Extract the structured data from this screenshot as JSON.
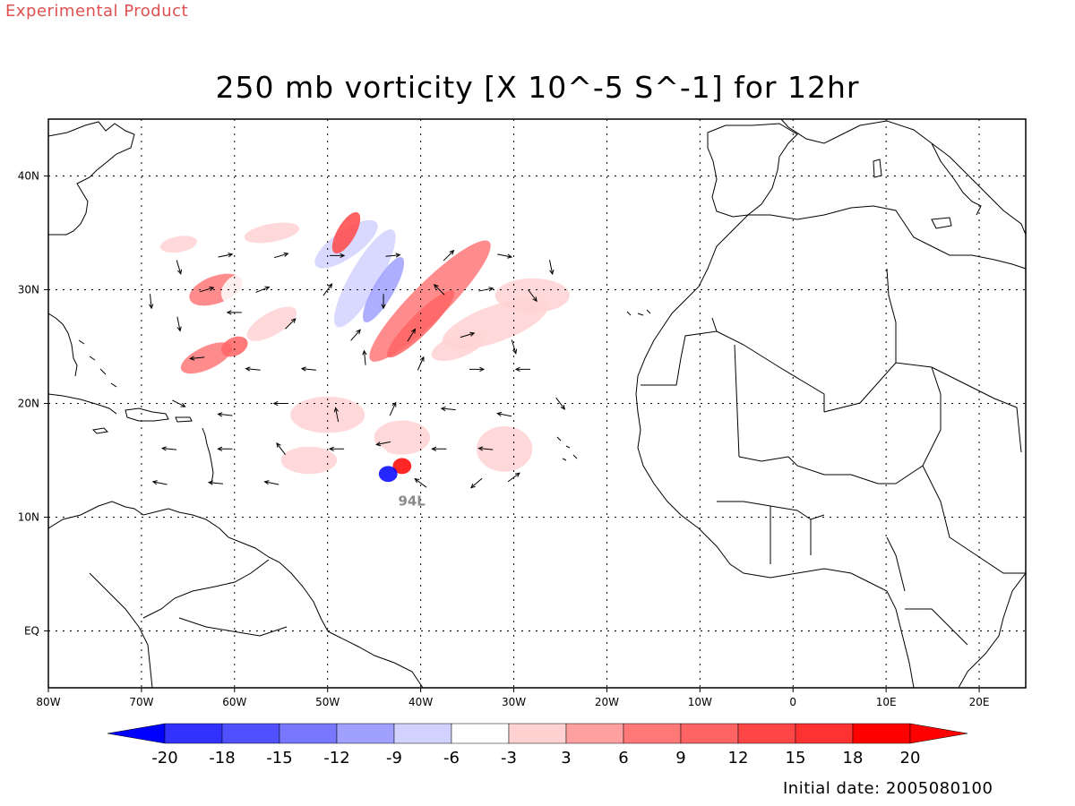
{
  "banner": "Experimental Product",
  "title": "250 mb vorticity [X 10^-5 S^-1] for 12hr",
  "initial_date": "Initial date: 2005080100",
  "storm_label": "94L",
  "map": {
    "lon_range": [
      -80,
      25
    ],
    "lat_range": [
      -5,
      45
    ],
    "x_ticks": [
      "80W",
      "70W",
      "60W",
      "50W",
      "40W",
      "30W",
      "20W",
      "10W",
      "0",
      "10E",
      "20E"
    ],
    "x_tick_values": [
      -80,
      -70,
      -60,
      -50,
      -40,
      -30,
      -20,
      -10,
      0,
      10,
      20
    ],
    "y_ticks": [
      "40N",
      "30N",
      "20N",
      "10N",
      "EQ"
    ],
    "y_tick_values": [
      40,
      30,
      20,
      10,
      0
    ],
    "gridlines": "dotted",
    "domain_box_lon": [
      -70,
      -24
    ],
    "domain_box_lat": [
      12.5,
      36.5
    ],
    "storm_center": {
      "lon": -43,
      "lat": 14
    }
  },
  "colorbar": {
    "labels": [
      "-20",
      "-18",
      "-15",
      "-12",
      "-9",
      "-6",
      "-3",
      "3",
      "6",
      "9",
      "12",
      "15",
      "18",
      "20"
    ],
    "colors": [
      "#0000ff",
      "#3232ff",
      "#5050ff",
      "#7878ff",
      "#a0a0ff",
      "#d2d2ff",
      "#ffffff",
      "#ffd2d2",
      "#ffa0a0",
      "#ff7878",
      "#ff6464",
      "#ff4646",
      "#ff3232",
      "#ff0000"
    ]
  },
  "vorticity_blobs": [
    {
      "lon": -48,
      "lat": 34,
      "rx": 4,
      "ry": 1.2,
      "rot": -35,
      "v": -9
    },
    {
      "lon": -53,
      "lat": 29,
      "rx": 5,
      "ry": 1.4,
      "rot": -35,
      "v": -6
    },
    {
      "lon": -46,
      "lat": 31,
      "rx": 6,
      "ry": 1.3,
      "rot": -60,
      "v": -9
    },
    {
      "lon": -44,
      "lat": 30,
      "rx": 4,
      "ry": 0.9,
      "rot": -60,
      "v": -12
    },
    {
      "lon": -39,
      "lat": 29,
      "rx": 9,
      "ry": 1.6,
      "rot": -45,
      "v": 6
    },
    {
      "lon": -40,
      "lat": 27,
      "rx": 5,
      "ry": 0.9,
      "rot": -45,
      "v": 9
    },
    {
      "lon": -48,
      "lat": 35,
      "rx": 2.5,
      "ry": 0.8,
      "rot": -60,
      "v": 12
    },
    {
      "lon": -32,
      "lat": 27,
      "rx": 6,
      "ry": 1.6,
      "rot": -20,
      "v": -3
    },
    {
      "lon": -28,
      "lat": 29.5,
      "rx": 4,
      "ry": 1.5,
      "rot": 0,
      "v": -3
    },
    {
      "lon": -62,
      "lat": 30,
      "rx": 3,
      "ry": 1.2,
      "rot": -20,
      "v": 6
    },
    {
      "lon": -59,
      "lat": 30,
      "rx": 2.5,
      "ry": 1.5,
      "rot": -20,
      "v": -6
    },
    {
      "lon": -63,
      "lat": 24,
      "rx": 3,
      "ry": 1.0,
      "rot": -25,
      "v": 6
    },
    {
      "lon": -60,
      "lat": 25,
      "rx": 1.5,
      "ry": 0.8,
      "rot": -25,
      "v": 9
    },
    {
      "lon": -56,
      "lat": 27,
      "rx": 3,
      "ry": 1.0,
      "rot": -30,
      "v": -3
    },
    {
      "lon": -56,
      "lat": 35,
      "rx": 3,
      "ry": 0.8,
      "rot": -10,
      "v": -3
    },
    {
      "lon": -66,
      "lat": 34,
      "rx": 2,
      "ry": 0.7,
      "rot": -10,
      "v": -3
    },
    {
      "lon": -50,
      "lat": 19,
      "rx": 4,
      "ry": 1.6,
      "rot": 0,
      "v": -3
    },
    {
      "lon": -42,
      "lat": 17,
      "rx": 3,
      "ry": 1.5,
      "rot": 0,
      "v": -3
    },
    {
      "lon": -52,
      "lat": 15,
      "rx": 3,
      "ry": 1.2,
      "rot": 0,
      "v": -3
    },
    {
      "lon": -31,
      "lat": 16,
      "rx": 3,
      "ry": 2,
      "rot": 0,
      "v": -3
    },
    {
      "lon": -36,
      "lat": 25,
      "rx": 3,
      "ry": 1.0,
      "rot": -20,
      "v": -3
    },
    {
      "lon": -42,
      "lat": 14.5,
      "rx": 1.0,
      "ry": 0.7,
      "rot": 0,
      "v": 20
    },
    {
      "lon": -43.5,
      "lat": 13.8,
      "rx": 1.0,
      "ry": 0.7,
      "rot": 0,
      "v": -20
    },
    {
      "lon": -45,
      "lat": 15.5,
      "rx": 1.5,
      "ry": 0.8,
      "rot": 0,
      "v": -6
    }
  ],
  "wind_vectors": [
    {
      "lon": -66,
      "lat": 32,
      "u": 0.3,
      "v": -1
    },
    {
      "lon": -61,
      "lat": 33,
      "u": 1,
      "v": 0.2
    },
    {
      "lon": -55,
      "lat": 33,
      "u": 1,
      "v": 0.3
    },
    {
      "lon": -49,
      "lat": 33,
      "u": 1,
      "v": 0
    },
    {
      "lon": -43,
      "lat": 33,
      "u": 1,
      "v": 0.1
    },
    {
      "lon": -37,
      "lat": 33,
      "u": 0.7,
      "v": 0.7
    },
    {
      "lon": -31,
      "lat": 33,
      "u": 1,
      "v": -0.2
    },
    {
      "lon": -26,
      "lat": 32,
      "u": 0.2,
      "v": -1
    },
    {
      "lon": -63,
      "lat": 30,
      "u": 1,
      "v": 0.3
    },
    {
      "lon": -57,
      "lat": 30,
      "u": 1,
      "v": 0.4
    },
    {
      "lon": -50,
      "lat": 30,
      "u": 0.6,
      "v": 0.8
    },
    {
      "lon": -44,
      "lat": 29,
      "u": 0,
      "v": -1
    },
    {
      "lon": -38,
      "lat": 30,
      "u": -0.7,
      "v": 0.7
    },
    {
      "lon": -33,
      "lat": 30,
      "u": 1,
      "v": 0.2
    },
    {
      "lon": -28,
      "lat": 29.5,
      "u": 0.6,
      "v": -0.8
    },
    {
      "lon": -69,
      "lat": 29,
      "u": 0.1,
      "v": -1
    },
    {
      "lon": -66,
      "lat": 27,
      "u": 0.2,
      "v": -1
    },
    {
      "lon": -60,
      "lat": 28,
      "u": -1,
      "v": 0
    },
    {
      "lon": -54,
      "lat": 27,
      "u": 0.7,
      "v": 0.7
    },
    {
      "lon": -47,
      "lat": 26,
      "u": 0.7,
      "v": 0.8
    },
    {
      "lon": -41,
      "lat": 26,
      "u": 0.5,
      "v": 0.8
    },
    {
      "lon": -35,
      "lat": 26,
      "u": 1,
      "v": 0.3
    },
    {
      "lon": -30,
      "lat": 25,
      "u": 0.3,
      "v": -1
    },
    {
      "lon": -64,
      "lat": 24,
      "u": -1,
      "v": -0.1
    },
    {
      "lon": -58,
      "lat": 23,
      "u": -1,
      "v": 0.1
    },
    {
      "lon": -52,
      "lat": 23,
      "u": -1,
      "v": 0.1
    },
    {
      "lon": -46,
      "lat": 24,
      "u": -0.1,
      "v": 1
    },
    {
      "lon": -40,
      "lat": 23.5,
      "u": 0.4,
      "v": 0.9
    },
    {
      "lon": -34,
      "lat": 23,
      "u": 1,
      "v": 0
    },
    {
      "lon": -29,
      "lat": 23,
      "u": -1,
      "v": 0
    },
    {
      "lon": -66,
      "lat": 20,
      "u": 1,
      "v": -0.5
    },
    {
      "lon": -61,
      "lat": 19,
      "u": -1,
      "v": 0.1
    },
    {
      "lon": -55,
      "lat": 20,
      "u": -1,
      "v": 0
    },
    {
      "lon": -49,
      "lat": 19,
      "u": -0.2,
      "v": 1
    },
    {
      "lon": -43,
      "lat": 19.5,
      "u": 0.4,
      "v": 0.9
    },
    {
      "lon": -37,
      "lat": 19.5,
      "u": -1,
      "v": 0.1
    },
    {
      "lon": -31,
      "lat": 19,
      "u": -1,
      "v": 0.2
    },
    {
      "lon": -25,
      "lat": 20,
      "u": 0.6,
      "v": -0.8
    },
    {
      "lon": -67,
      "lat": 16,
      "u": -1,
      "v": 0.1
    },
    {
      "lon": -61,
      "lat": 16,
      "u": -1,
      "v": 0
    },
    {
      "lon": -55,
      "lat": 16,
      "u": -0.6,
      "v": 0.8
    },
    {
      "lon": -49,
      "lat": 16,
      "u": -1,
      "v": 0
    },
    {
      "lon": -44,
      "lat": 16.5,
      "u": -1,
      "v": -0.2
    },
    {
      "lon": -38,
      "lat": 16,
      "u": -1,
      "v": 0
    },
    {
      "lon": -33,
      "lat": 16,
      "u": -1,
      "v": 0.1
    },
    {
      "lon": -68,
      "lat": 13,
      "u": -1,
      "v": 0.2
    },
    {
      "lon": -62,
      "lat": 13,
      "u": -1,
      "v": 0.1
    },
    {
      "lon": -56,
      "lat": 13,
      "u": -1,
      "v": 0.2
    },
    {
      "lon": -40,
      "lat": 13,
      "u": -0.8,
      "v": 0.6
    },
    {
      "lon": -34,
      "lat": 13,
      "u": -0.7,
      "v": -0.6
    },
    {
      "lon": -30,
      "lat": 13.5,
      "u": 0.8,
      "v": 0.6
    }
  ]
}
